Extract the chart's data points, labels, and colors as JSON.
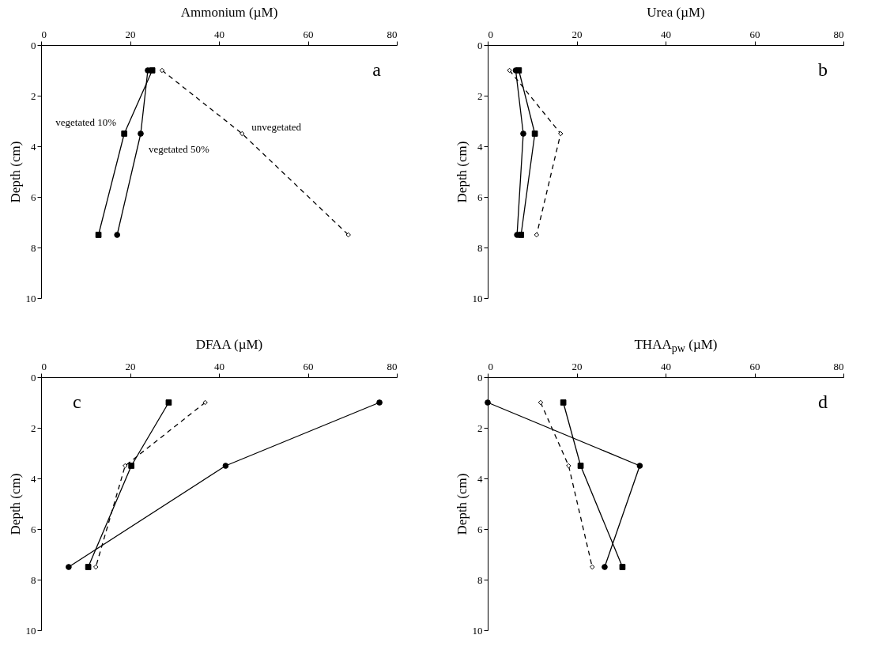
{
  "chart_data": [
    {
      "type": "line",
      "title": "Ammonium (µM)",
      "ylabel": "Depth (cm)",
      "annotations": [
        "a"
      ],
      "xlim": [
        0,
        80
      ],
      "xticks": [
        0,
        20,
        40,
        60,
        80
      ],
      "ylim": [
        10,
        0
      ],
      "yticks": [
        0,
        2,
        4,
        6,
        8,
        10
      ],
      "grid": false,
      "series": [
        {
          "name": "vegetated 10%",
          "color": "#000000",
          "marker": "square",
          "line_style": "solid",
          "x": [
            25,
            18.7,
            12.9
          ],
          "values": [
            1,
            3.5,
            7.5
          ]
        },
        {
          "name": "vegetated 50%",
          "color": "#000000",
          "marker": "circle",
          "line_style": "solid",
          "x": [
            24,
            22.4,
            17.1
          ],
          "values": [
            1,
            3.5,
            7.5
          ]
        },
        {
          "name": "unvegetated",
          "color": "#000000",
          "marker": "diamond",
          "line_style": "dashed",
          "x": [
            27.2,
            45.2,
            69.1
          ],
          "values": [
            1,
            3.5,
            7.5
          ]
        }
      ]
    },
    {
      "type": "line",
      "title": "Urea (µM)",
      "ylabel": "Depth (cm)",
      "annotations": [
        "b"
      ],
      "xlim": [
        0,
        80
      ],
      "xticks": [
        0,
        20,
        40,
        60,
        80
      ],
      "ylim": [
        10,
        0
      ],
      "yticks": [
        0,
        2,
        4,
        6,
        8,
        10
      ],
      "grid": false,
      "series": [
        {
          "color": "#000000",
          "marker": "square",
          "line_style": "solid",
          "x": [
            7.0,
            10.6,
            7.5
          ],
          "values": [
            1,
            3.5,
            7.5
          ]
        },
        {
          "color": "#000000",
          "marker": "circle",
          "line_style": "solid",
          "x": [
            6.3,
            8.0,
            6.6
          ],
          "values": [
            1,
            3.5,
            7.5
          ]
        },
        {
          "color": "#000000",
          "marker": "diamond",
          "line_style": "dashed",
          "x": [
            4.9,
            16.4,
            11.0
          ],
          "values": [
            1,
            3.5,
            7.5
          ]
        }
      ]
    },
    {
      "type": "line",
      "title": "DFAA (µM)",
      "ylabel": "Depth (cm)",
      "annotations": [
        "c"
      ],
      "xlim": [
        0,
        80
      ],
      "xticks": [
        0,
        20,
        40,
        60,
        80
      ],
      "ylim": [
        10,
        0
      ],
      "yticks": [
        0,
        2,
        4,
        6,
        8,
        10
      ],
      "grid": false,
      "series": [
        {
          "color": "#000000",
          "marker": "square",
          "line_style": "solid",
          "x": [
            28.7,
            20.3,
            10.6
          ],
          "values": [
            1,
            3.5,
            7.5
          ]
        },
        {
          "color": "#000000",
          "marker": "circle",
          "line_style": "solid",
          "x": [
            76.1,
            41.5,
            6.2
          ],
          "values": [
            1,
            3.5,
            7.5
          ]
        },
        {
          "color": "#000000",
          "marker": "diamond",
          "line_style": "dashed",
          "x": [
            36.9,
            18.9,
            12.3
          ],
          "values": [
            1,
            3.5,
            7.5
          ]
        }
      ]
    },
    {
      "type": "line",
      "title": "THAA$_{pw}$ (µM)",
      "ylabel": "Depth (cm)",
      "annotations": [
        "d"
      ],
      "xlim": [
        0,
        80
      ],
      "xticks": [
        0,
        20,
        40,
        60,
        80
      ],
      "ylim": [
        10,
        0
      ],
      "yticks": [
        0,
        2,
        4,
        6,
        8,
        10
      ],
      "grid": false,
      "series": [
        {
          "color": "#000000",
          "marker": "square",
          "line_style": "solid",
          "x": [
            17.0,
            20.9,
            30.3
          ],
          "values": [
            1,
            3.5,
            7.5
          ]
        },
        {
          "color": "#000000",
          "marker": "circle",
          "line_style": "solid",
          "x": [
            0,
            34.2,
            26.3
          ],
          "values": [
            1,
            3.5,
            7.5
          ]
        },
        {
          "color": "#000000",
          "marker": "diamond",
          "line_style": "dashed",
          "x": [
            11.9,
            18.2,
            23.5
          ],
          "values": [
            1,
            3.5,
            7.5
          ]
        }
      ]
    }
  ]
}
